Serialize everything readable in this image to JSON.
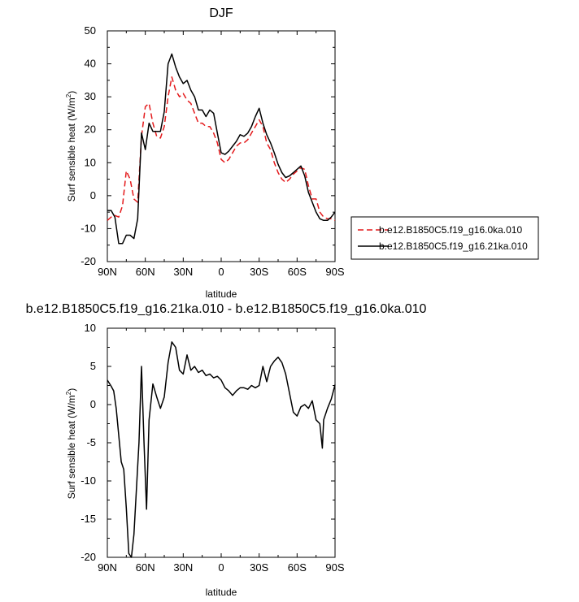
{
  "chart_data": [
    {
      "type": "line",
      "title": "DJF",
      "xlabel": "latitude",
      "ylabel": "Surf sensible heat (W/m²)",
      "ylabel_main": "Surf sensible heat (W/m",
      "ylabel_sup": "2",
      "ylabel_end": ")",
      "xlim": [
        -90,
        90
      ],
      "ylim": [
        -20,
        50
      ],
      "x_ticks": [
        -90,
        -60,
        -30,
        0,
        30,
        60,
        90
      ],
      "x_tick_labels": [
        "90N",
        "60N",
        "30N",
        "0",
        "30S",
        "60S",
        "90S"
      ],
      "y_ticks": [
        -20,
        -10,
        0,
        10,
        20,
        30,
        40,
        50
      ],
      "y_tick_labels": [
        "-20",
        "-10",
        "0",
        "10",
        "20",
        "30",
        "40",
        "50"
      ],
      "legend_position": "right",
      "series": [
        {
          "name": "b.e12.B1850C5.f19_g16.0ka.010",
          "color": "#e41a1c",
          "dash": true,
          "x": [
            -90,
            -87,
            -84,
            -81,
            -78,
            -75,
            -72,
            -69,
            -66,
            -63,
            -60,
            -57,
            -54,
            -51,
            -48,
            -45,
            -42,
            -39,
            -36,
            -33,
            -30,
            -27,
            -24,
            -21,
            -18,
            -15,
            -12,
            -9,
            -6,
            -3,
            0,
            3,
            6,
            9,
            12,
            15,
            18,
            21,
            24,
            27,
            30,
            33,
            36,
            39,
            42,
            45,
            48,
            51,
            54,
            57,
            60,
            63,
            66,
            69,
            72,
            75,
            78,
            81,
            84,
            87,
            90
          ],
          "y": [
            -7.5,
            -6.5,
            -6,
            -6.5,
            -3,
            7.5,
            5,
            -1,
            -2,
            18,
            27,
            28,
            22,
            18,
            17.5,
            21,
            30,
            36,
            32,
            30,
            31,
            29,
            28,
            25,
            22,
            22,
            21,
            21,
            19,
            16,
            11,
            10,
            11,
            13,
            15,
            16,
            16,
            17,
            19,
            21,
            23,
            21,
            16,
            14,
            10,
            7,
            5,
            4,
            5,
            6.5,
            7.5,
            8.5,
            8,
            3,
            -1,
            -1,
            -5,
            -6.5,
            -7,
            -7,
            -7.5
          ]
        },
        {
          "name": "b.e12.B1850C5.f19_g16.21ka.010",
          "color": "#000000",
          "dash": false,
          "x": [
            -90,
            -87,
            -84,
            -81,
            -78,
            -75,
            -72,
            -69,
            -66,
            -63,
            -60,
            -57,
            -54,
            -51,
            -48,
            -45,
            -42,
            -39,
            -36,
            -33,
            -30,
            -27,
            -24,
            -21,
            -18,
            -15,
            -12,
            -9,
            -6,
            -3,
            0,
            3,
            6,
            9,
            12,
            15,
            18,
            21,
            24,
            27,
            30,
            33,
            36,
            39,
            42,
            45,
            48,
            51,
            54,
            57,
            60,
            63,
            66,
            69,
            72,
            75,
            78,
            81,
            84,
            87,
            90
          ],
          "y": [
            -4.5,
            -4.5,
            -6.5,
            -14.5,
            -14.5,
            -12,
            -12,
            -13,
            -7,
            19,
            14,
            22,
            19.5,
            19.5,
            19.5,
            25.5,
            40,
            43,
            39,
            36,
            34,
            35,
            32,
            30,
            26,
            26,
            24,
            26,
            25,
            19,
            13,
            12.5,
            13.5,
            15,
            16.5,
            18.5,
            18,
            19,
            21,
            24,
            26.5,
            22,
            18.5,
            16,
            13,
            9.5,
            7,
            5.5,
            6,
            7,
            8,
            9,
            6,
            1,
            -2,
            -5,
            -7,
            -7.5,
            -7.5,
            -6.5,
            -5
          ]
        }
      ]
    },
    {
      "type": "line",
      "title": "b.e12.B1850C5.f19_g16.21ka.010 - b.e12.B1850C5.f19_g16.0ka.010",
      "xlabel": "latitude",
      "ylabel": "Surf sensible heat (W/m²)",
      "ylabel_main": "Surf sensible heat (W/m",
      "ylabel_sup": "2",
      "ylabel_end": ")",
      "xlim": [
        -90,
        90
      ],
      "ylim": [
        -20,
        10
      ],
      "x_ticks": [
        -90,
        -60,
        -30,
        0,
        30,
        60,
        90
      ],
      "x_tick_labels": [
        "90N",
        "60N",
        "30N",
        "0",
        "30S",
        "60S",
        "90S"
      ],
      "y_ticks": [
        -20,
        -15,
        -10,
        -5,
        0,
        5,
        10
      ],
      "y_tick_labels": [
        "-20",
        "-15",
        "-10",
        "-5",
        "0",
        "5",
        "10"
      ],
      "series": [
        {
          "color": "#000000",
          "dash": false,
          "x": [
            -90,
            -87,
            -85,
            -83,
            -81,
            -79,
            -77,
            -75,
            -73,
            -71,
            -69,
            -67,
            -65,
            -63,
            -61,
            -59,
            -57,
            -54,
            -51,
            -48,
            -45,
            -42,
            -39,
            -36,
            -33,
            -30,
            -27,
            -24,
            -21,
            -18,
            -15,
            -12,
            -9,
            -6,
            -3,
            0,
            3,
            6,
            9,
            12,
            15,
            18,
            21,
            24,
            27,
            30,
            33,
            36,
            39,
            42,
            45,
            48,
            51,
            54,
            57,
            60,
            63,
            66,
            69,
            72,
            75,
            78,
            80,
            81,
            84,
            87,
            90
          ],
          "y": [
            3.2,
            2.4,
            1.8,
            -0.5,
            -4,
            -7.5,
            -8.5,
            -13.5,
            -19.5,
            -20,
            -17,
            -11,
            -5,
            5,
            -5,
            -13.7,
            -2,
            2.7,
            1,
            -0.5,
            1,
            5.5,
            8.2,
            7.5,
            4.5,
            4,
            6.5,
            4.5,
            5,
            4.2,
            4.5,
            3.8,
            4,
            3.5,
            3.7,
            3.2,
            2.2,
            1.8,
            1.2,
            1.8,
            2.2,
            2.2,
            2,
            2.5,
            2.2,
            2.5,
            5,
            3,
            5,
            5.7,
            6.2,
            5.5,
            4,
            1.5,
            -1,
            -1.5,
            -0.3,
            0,
            -0.5,
            0.5,
            -2,
            -2.5,
            -5.7,
            -2,
            -0.5,
            0.7,
            2.6
          ]
        }
      ]
    }
  ]
}
